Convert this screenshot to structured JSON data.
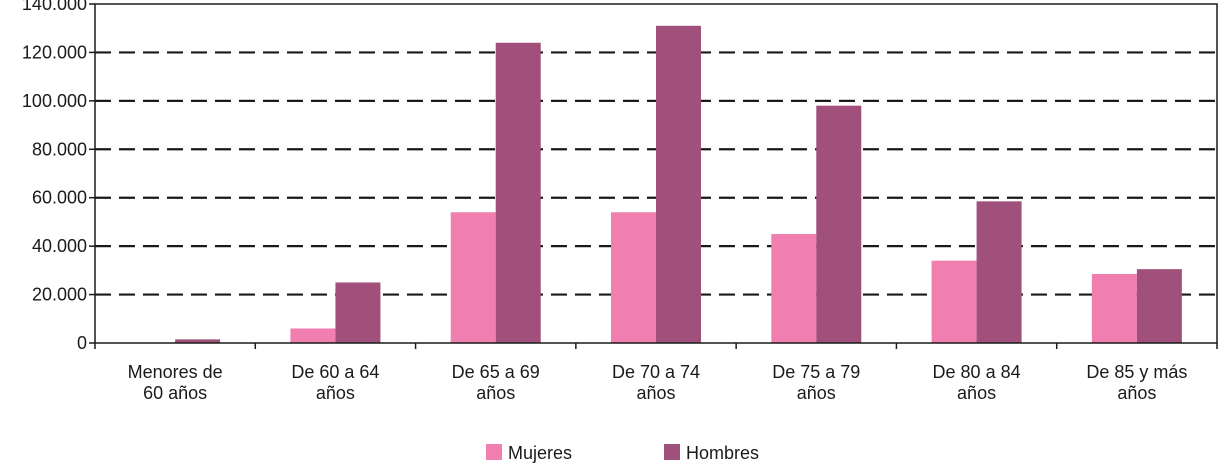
{
  "chart_data": {
    "type": "bar",
    "categories": [
      [
        "Menores de",
        "60 años"
      ],
      [
        "De 60 a 64",
        "años"
      ],
      [
        "De 65 a 69",
        "años"
      ],
      [
        "De 70 a 74",
        "años"
      ],
      [
        "De 75 a 79",
        "años"
      ],
      [
        "De 80 a 84",
        "años"
      ],
      [
        "De 85 y más",
        "años"
      ]
    ],
    "series": [
      {
        "name": "Mujeres",
        "color": "#f07fb0",
        "values": [
          0,
          6000,
          54000,
          54000,
          45000,
          34000,
          28500
        ]
      },
      {
        "name": "Hombres",
        "color": "#a0507a",
        "values": [
          1500,
          25000,
          124000,
          131000,
          98000,
          58500,
          30500
        ]
      }
    ],
    "ylim": [
      0,
      140000
    ],
    "yticks": [
      0,
      20000,
      40000,
      60000,
      80000,
      100000,
      120000,
      140000
    ],
    "ytick_labels": [
      "0",
      "20.000",
      "40.000",
      "60.000",
      "80.000",
      "100.000",
      "120.000",
      "140.000"
    ],
    "grid": "dashed-horizontal",
    "legend_position": "bottom-center",
    "title": "",
    "xlabel": "",
    "ylabel": ""
  }
}
